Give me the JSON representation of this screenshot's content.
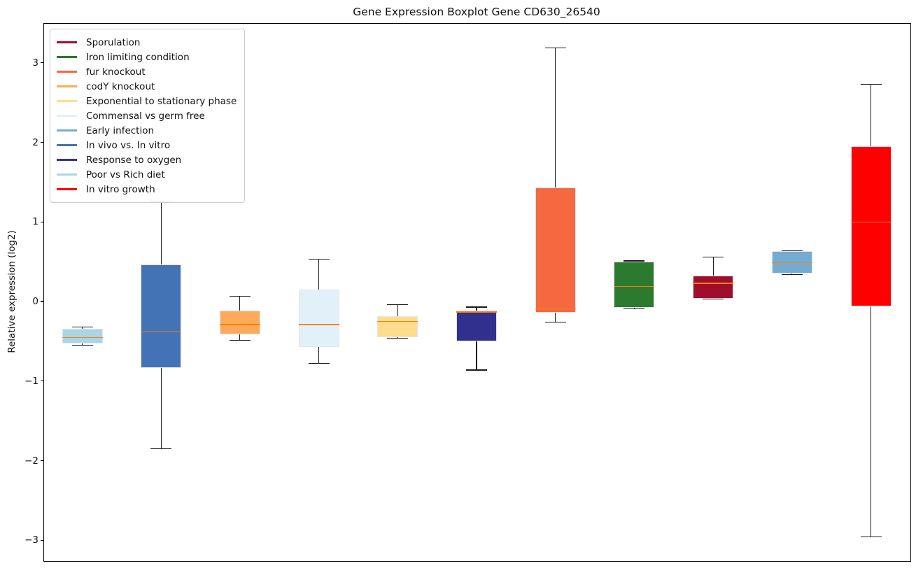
{
  "title": "Gene Expression Boxplot Gene CD630_26540",
  "ylabel": "Relative expression (log2)",
  "chart_data": {
    "type": "boxplot",
    "title": "Gene Expression Boxplot Gene CD630_26540",
    "xlabel": "",
    "ylabel": "Relative expression (log2)",
    "ylim": [
      -3.26,
      3.49
    ],
    "yticks": [
      3,
      2,
      1,
      0,
      -1,
      -2,
      -3
    ],
    "grid": false,
    "legend_position": "upper-left",
    "median_color": "#FF7F0E",
    "whisker_color": "#1a1a1a",
    "box_edge_color": "#e4e4f0",
    "boxes": [
      {
        "label": "Poor vs Rich diet",
        "color": "#A9D5E8",
        "whisker_low": -0.55,
        "q1": -0.53,
        "median": -0.45,
        "q3": -0.34,
        "whisker_high": -0.32
      },
      {
        "label": "In vivo vs. In vitro",
        "color": "#4473B5",
        "whisker_low": -1.85,
        "q1": -0.83,
        "median": -0.38,
        "q3": 0.47,
        "whisker_high": 1.26
      },
      {
        "label": "codY knockout",
        "color": "#FFA95A",
        "whisker_low": -0.49,
        "q1": -0.41,
        "median": -0.29,
        "q3": -0.11,
        "whisker_high": 0.07
      },
      {
        "label": "Commensal vs germ free",
        "color": "#E2F1F9",
        "whisker_low": -0.78,
        "q1": -0.57,
        "median": -0.29,
        "q3": 0.15,
        "whisker_high": 0.53
      },
      {
        "label": "Exponential to stationary phase",
        "color": "#FFDD8D",
        "whisker_low": -0.46,
        "q1": -0.45,
        "median": -0.25,
        "q3": -0.18,
        "whisker_high": -0.04
      },
      {
        "label": "Response to oxygen",
        "color": "#32308E",
        "whisker_low": -0.86,
        "q1": -0.5,
        "median": -0.13,
        "q3": -0.11,
        "whisker_high": -0.07
      },
      {
        "label": "fur knockout",
        "color": "#F4693F",
        "whisker_low": -0.26,
        "q1": -0.14,
        "median": -0.09,
        "q3": 1.43,
        "whisker_high": 3.19
      },
      {
        "label": "Iron limiting condition",
        "color": "#2B7A2E",
        "whisker_low": -0.09,
        "q1": -0.08,
        "median": 0.19,
        "q3": 0.5,
        "whisker_high": 0.51
      },
      {
        "label": "Sporulation",
        "color": "#A00E2E",
        "whisker_low": 0.03,
        "q1": 0.04,
        "median": 0.23,
        "q3": 0.33,
        "whisker_high": 0.56
      },
      {
        "label": "Early infection",
        "color": "#74ABD3",
        "whisker_low": 0.34,
        "q1": 0.35,
        "median": 0.49,
        "q3": 0.63,
        "whisker_high": 0.64
      },
      {
        "label": "In vitro growth",
        "color": "#FE0000",
        "whisker_low": -2.96,
        "q1": -0.06,
        "median": 1.0,
        "q3": 1.95,
        "whisker_high": 2.73
      }
    ],
    "legend": [
      {
        "label": "Sporulation",
        "color": "#A00E2E"
      },
      {
        "label": "Iron limiting condition",
        "color": "#2B7A2E"
      },
      {
        "label": "fur knockout",
        "color": "#F4693F"
      },
      {
        "label": "codY knockout",
        "color": "#FFA95A"
      },
      {
        "label": "Exponential to stationary phase",
        "color": "#FFDD8D"
      },
      {
        "label": "Commensal vs germ free",
        "color": "#E2F1F9"
      },
      {
        "label": "Early infection",
        "color": "#74ABD3"
      },
      {
        "label": "In vivo vs. In vitro",
        "color": "#4473B5"
      },
      {
        "label": "Response to oxygen",
        "color": "#32308E"
      },
      {
        "label": "Poor vs Rich diet",
        "color": "#A9D5E8"
      },
      {
        "label": "In vitro growth",
        "color": "#FE0000"
      }
    ]
  }
}
